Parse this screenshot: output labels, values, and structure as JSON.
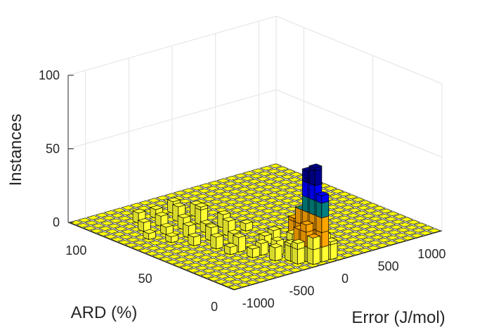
{
  "chart_data": {
    "type": "bar3d",
    "zlabel": "Instances",
    "ylabel": "ARD (%)",
    "xlabel": "Error (J/mol)",
    "x_ticks": [
      "-1000",
      "-500",
      "0",
      "500",
      "1000"
    ],
    "y_ticks": [
      "0",
      "50",
      "100"
    ],
    "z_ticks": [
      "0",
      "50",
      "100"
    ],
    "xlim": [
      -1200,
      1200
    ],
    "ylim": [
      0,
      120
    ],
    "zlim": [
      0,
      100
    ],
    "grid": true,
    "colors": {
      "zero_plane": "#ffff00",
      "low": "#ffff33",
      "mid": "#ffa500",
      "teal": "#008080",
      "blue": "#0000ff",
      "high": "#000090"
    },
    "bars": [
      {
        "x": -100,
        "y": 5,
        "z": 45
      },
      {
        "x": -100,
        "y": 10,
        "z": 62
      },
      {
        "x": -100,
        "y": 15,
        "z": 58
      },
      {
        "x": -100,
        "y": 20,
        "z": 30
      },
      {
        "x": -100,
        "y": 25,
        "z": 22
      },
      {
        "x": -200,
        "y": 5,
        "z": 18
      },
      {
        "x": -200,
        "y": 10,
        "z": 25
      },
      {
        "x": -200,
        "y": 15,
        "z": 20
      },
      {
        "x": -200,
        "y": 20,
        "z": 15
      },
      {
        "x": -300,
        "y": 10,
        "z": 14
      },
      {
        "x": -300,
        "y": 15,
        "z": 12
      },
      {
        "x": -300,
        "y": 25,
        "z": 10
      },
      {
        "x": 0,
        "y": 10,
        "z": 15
      },
      {
        "x": 0,
        "y": 5,
        "z": 12
      },
      {
        "x": 0,
        "y": 20,
        "z": 8
      },
      {
        "x": -400,
        "y": 20,
        "z": 9
      },
      {
        "x": -400,
        "y": 30,
        "z": 8
      },
      {
        "x": -500,
        "y": 30,
        "z": 6
      },
      {
        "x": -500,
        "y": 40,
        "z": 10
      },
      {
        "x": -600,
        "y": 50,
        "z": 8
      },
      {
        "x": -400,
        "y": 50,
        "z": 7
      },
      {
        "x": -300,
        "y": 60,
        "z": 10
      },
      {
        "x": -500,
        "y": 60,
        "z": 9
      },
      {
        "x": -700,
        "y": 60,
        "z": 6
      },
      {
        "x": -600,
        "y": 70,
        "z": 8
      },
      {
        "x": -400,
        "y": 70,
        "z": 6
      },
      {
        "x": -200,
        "y": 70,
        "z": 9
      },
      {
        "x": -500,
        "y": 80,
        "z": 8
      },
      {
        "x": -300,
        "y": 80,
        "z": 12
      },
      {
        "x": -700,
        "y": 80,
        "z": 5
      },
      {
        "x": -600,
        "y": 90,
        "z": 7
      },
      {
        "x": -400,
        "y": 90,
        "z": 10
      },
      {
        "x": -200,
        "y": 90,
        "z": 8
      },
      {
        "x": -800,
        "y": 90,
        "z": 6
      },
      {
        "x": -500,
        "y": 100,
        "z": 6
      },
      {
        "x": -300,
        "y": 100,
        "z": 8
      },
      {
        "x": -700,
        "y": 100,
        "z": 7
      },
      {
        "x": -100,
        "y": 40,
        "z": 8
      },
      {
        "x": -100,
        "y": 60,
        "z": 5
      },
      {
        "x": -200,
        "y": 40,
        "z": 6
      },
      {
        "x": -600,
        "y": 40,
        "z": 5
      },
      {
        "x": -800,
        "y": 70,
        "z": 4
      },
      {
        "x": 100,
        "y": 30,
        "z": 5
      },
      {
        "x": -900,
        "y": 80,
        "z": 4
      }
    ]
  }
}
